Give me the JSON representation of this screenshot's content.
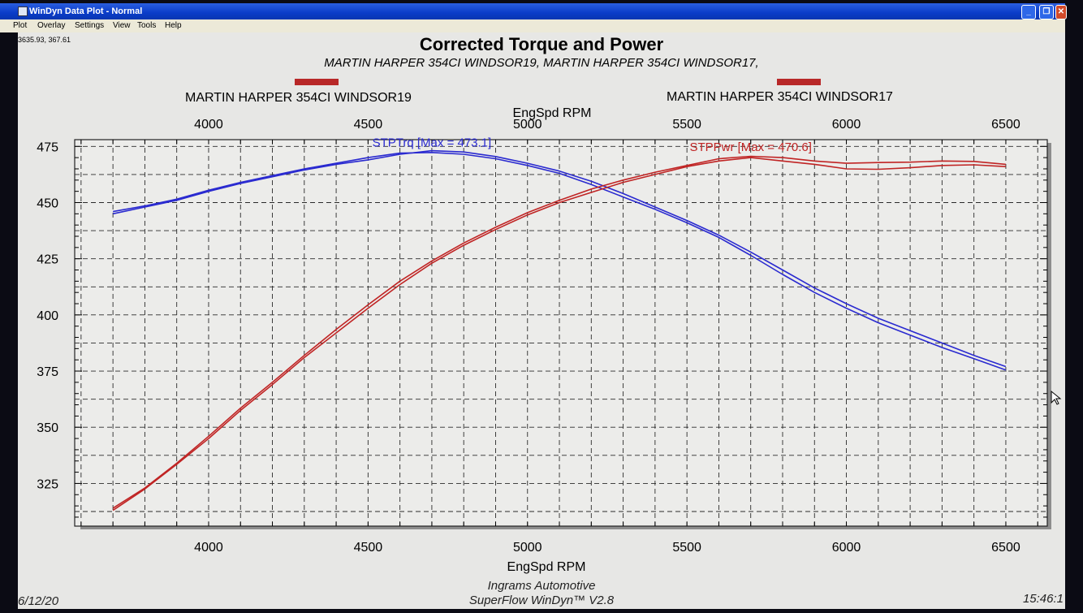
{
  "window": {
    "title": "WinDyn Data Plot - Normal",
    "controls": [
      "_",
      "❐",
      "✕"
    ]
  },
  "menu": {
    "items": [
      "Plot",
      "Overlay",
      "Settings",
      "View",
      "Tools",
      "Help"
    ]
  },
  "status": {
    "cursor_readout": "3635.93, 367.61",
    "date": "6/12/20",
    "time": "15:46:1"
  },
  "colors": {
    "torque": "#2a2ad0",
    "power": "#c02424",
    "legend_swatch": "#b82828",
    "grid": "#2a2a2a"
  },
  "chart_data": {
    "type": "line",
    "title": "Corrected Torque and Power",
    "subtitle": "MARTIN HARPER 354CI WINDSOR19, MARTIN HARPER 354CI WINDSOR17,",
    "legend": [
      {
        "name": "MARTIN HARPER 354CI WINDSOR19"
      },
      {
        "name": "MARTIN HARPER 354CI WINDSOR17"
      }
    ],
    "xlabel": "EngSpd  RPM",
    "xlim": [
      3580,
      6630
    ],
    "ylim": [
      306,
      478
    ],
    "xticks": [
      4000,
      4500,
      5000,
      5500,
      6000,
      6500
    ],
    "yticks": [
      325,
      350,
      375,
      400,
      425,
      450,
      475
    ],
    "grid": true,
    "footer": [
      "Ingrams Automotive",
      "SuperFlow WinDyn™ V2.8"
    ],
    "annotations": [
      {
        "text": "STPTrq [Max = 473.1]",
        "series": "torque",
        "x": 4700,
        "y": 475
      },
      {
        "text": "STPPwr [Max = 470.6]",
        "series": "power",
        "x": 5700,
        "y": 473
      }
    ],
    "series": [
      {
        "group": "torque",
        "run": 1,
        "points": [
          [
            3700,
            446
          ],
          [
            3800,
            448.5
          ],
          [
            3900,
            451.5
          ],
          [
            4000,
            455.5
          ],
          [
            4100,
            459
          ],
          [
            4200,
            462
          ],
          [
            4300,
            465
          ],
          [
            4400,
            467.5
          ],
          [
            4500,
            470
          ],
          [
            4600,
            472
          ],
          [
            4700,
            472.3
          ],
          [
            4800,
            471.5
          ],
          [
            4900,
            469.5
          ],
          [
            5000,
            466.5
          ],
          [
            5100,
            463
          ],
          [
            5200,
            458
          ],
          [
            5300,
            452.5
          ],
          [
            5400,
            447
          ],
          [
            5500,
            441
          ],
          [
            5600,
            434.5
          ],
          [
            5700,
            426.5
          ],
          [
            5800,
            418
          ],
          [
            5900,
            410
          ],
          [
            6000,
            403
          ],
          [
            6100,
            396.5
          ],
          [
            6200,
            391
          ],
          [
            6300,
            385.5
          ],
          [
            6400,
            380.5
          ],
          [
            6500,
            375.5
          ]
        ]
      },
      {
        "group": "torque",
        "run": 2,
        "points": [
          [
            3700,
            445
          ],
          [
            3800,
            448
          ],
          [
            3900,
            451
          ],
          [
            4000,
            455
          ],
          [
            4100,
            458.5
          ],
          [
            4200,
            461.5
          ],
          [
            4300,
            464.5
          ],
          [
            4400,
            467
          ],
          [
            4500,
            469
          ],
          [
            4600,
            471.5
          ],
          [
            4700,
            473.1
          ],
          [
            4800,
            472.5
          ],
          [
            4900,
            470.5
          ],
          [
            5000,
            467.5
          ],
          [
            5100,
            464
          ],
          [
            5200,
            459.5
          ],
          [
            5300,
            454
          ],
          [
            5400,
            448
          ],
          [
            5500,
            442
          ],
          [
            5600,
            435.5
          ],
          [
            5700,
            428
          ],
          [
            5800,
            420
          ],
          [
            5900,
            412
          ],
          [
            6000,
            405
          ],
          [
            6100,
            398.5
          ],
          [
            6200,
            393
          ],
          [
            6300,
            387.5
          ],
          [
            6400,
            382
          ],
          [
            6500,
            377
          ]
        ]
      },
      {
        "group": "power",
        "run": 1,
        "points": [
          [
            3700,
            314
          ],
          [
            3800,
            323
          ],
          [
            3900,
            334
          ],
          [
            4000,
            346
          ],
          [
            4100,
            358.5
          ],
          [
            4200,
            370
          ],
          [
            4300,
            382
          ],
          [
            4400,
            393.5
          ],
          [
            4500,
            404.5
          ],
          [
            4600,
            415
          ],
          [
            4700,
            424
          ],
          [
            4800,
            432
          ],
          [
            4900,
            439
          ],
          [
            5000,
            445.5
          ],
          [
            5100,
            451
          ],
          [
            5200,
            456
          ],
          [
            5300,
            460
          ],
          [
            5400,
            463.5
          ],
          [
            5500,
            466.5
          ],
          [
            5600,
            469.5
          ],
          [
            5700,
            470.6
          ],
          [
            5800,
            470
          ],
          [
            5900,
            468.5
          ],
          [
            6000,
            467.5
          ],
          [
            6100,
            467.8
          ],
          [
            6200,
            468
          ],
          [
            6300,
            468.5
          ],
          [
            6400,
            468.3
          ],
          [
            6500,
            467
          ]
        ]
      },
      {
        "group": "power",
        "run": 2,
        "points": [
          [
            3700,
            313
          ],
          [
            3800,
            322.5
          ],
          [
            3900,
            333.5
          ],
          [
            4000,
            345
          ],
          [
            4100,
            357.5
          ],
          [
            4200,
            369
          ],
          [
            4300,
            381
          ],
          [
            4400,
            392
          ],
          [
            4500,
            403
          ],
          [
            4600,
            413.5
          ],
          [
            4700,
            423
          ],
          [
            4800,
            431
          ],
          [
            4900,
            438
          ],
          [
            5000,
            444.5
          ],
          [
            5100,
            450
          ],
          [
            5200,
            454.5
          ],
          [
            5300,
            459
          ],
          [
            5400,
            462.5
          ],
          [
            5500,
            466
          ],
          [
            5600,
            468.5
          ],
          [
            5700,
            470
          ],
          [
            5800,
            468.5
          ],
          [
            5900,
            467
          ],
          [
            6000,
            465
          ],
          [
            6100,
            464.8
          ],
          [
            6200,
            465.5
          ],
          [
            6300,
            466.5
          ],
          [
            6400,
            466.8
          ],
          [
            6500,
            466
          ]
        ]
      }
    ]
  }
}
